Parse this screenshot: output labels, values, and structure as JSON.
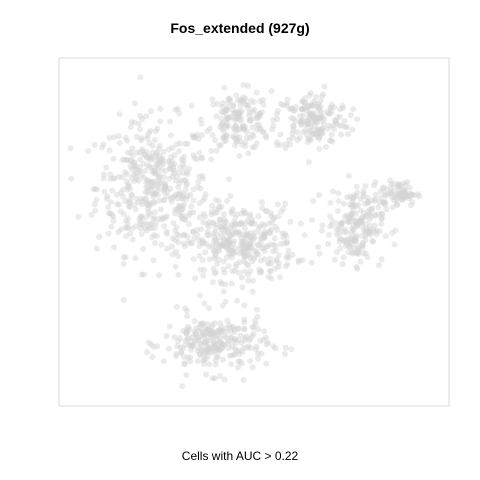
{
  "chart_data": {
    "type": "scatter",
    "title": "Fos_extended (927g)",
    "xlabel": "Cells with AUC > 0.22",
    "ylabel": "",
    "grid": false,
    "legend": "none",
    "point_color": "#d3d3d3",
    "point_opacity": 0.45,
    "clusters": [
      {
        "cx": 0.24,
        "cy": 0.63,
        "sx": 0.12,
        "sy": 0.16,
        "n": 420
      },
      {
        "cx": 0.46,
        "cy": 0.82,
        "sx": 0.07,
        "sy": 0.07,
        "n": 160
      },
      {
        "cx": 0.65,
        "cy": 0.82,
        "sx": 0.08,
        "sy": 0.07,
        "n": 180
      },
      {
        "cx": 0.46,
        "cy": 0.47,
        "sx": 0.12,
        "sy": 0.09,
        "n": 360
      },
      {
        "cx": 0.4,
        "cy": 0.18,
        "sx": 0.11,
        "sy": 0.07,
        "n": 260
      },
      {
        "cx": 0.76,
        "cy": 0.52,
        "sx": 0.06,
        "sy": 0.09,
        "n": 200
      },
      {
        "cx": 0.87,
        "cy": 0.61,
        "sx": 0.04,
        "sy": 0.03,
        "n": 70
      }
    ]
  }
}
